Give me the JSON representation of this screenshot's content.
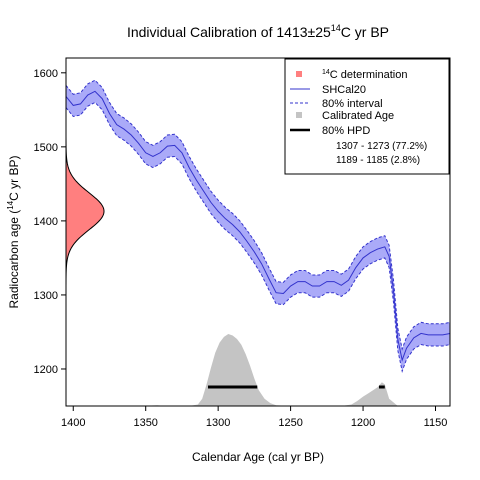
{
  "chart_data": {
    "type": "line",
    "title_main": "Individual Calibration of 1413±25",
    "title_sup": "14",
    "title_tail": "C yr BP",
    "xlabel": "Calendar Age (cal yr BP)",
    "ylabel_pre": "Radiocarbon age (",
    "ylabel_sup": "14",
    "ylabel_post": "C yr BP)",
    "xlim": [
      1405,
      1140
    ],
    "ylim": [
      1150,
      1620
    ],
    "x_ticks": [
      1400,
      1350,
      1300,
      1250,
      1200,
      1150
    ],
    "y_ticks": [
      1200,
      1300,
      1400,
      1500,
      1600
    ],
    "determination": {
      "mean": 1413,
      "sd": 25
    },
    "curve_name": "SHCal20",
    "curve": {
      "x": [
        1405,
        1400,
        1395,
        1390,
        1385,
        1380,
        1375,
        1370,
        1365,
        1360,
        1355,
        1350,
        1345,
        1340,
        1335,
        1330,
        1325,
        1320,
        1315,
        1310,
        1305,
        1300,
        1295,
        1290,
        1285,
        1280,
        1275,
        1270,
        1265,
        1260,
        1255,
        1250,
        1245,
        1240,
        1235,
        1230,
        1225,
        1220,
        1215,
        1210,
        1205,
        1200,
        1195,
        1190,
        1185,
        1182,
        1179,
        1176,
        1173,
        1170,
        1165,
        1160,
        1155,
        1150,
        1145,
        1140
      ],
      "mean": [
        1568,
        1556,
        1558,
        1570,
        1575,
        1565,
        1545,
        1530,
        1524,
        1516,
        1505,
        1492,
        1487,
        1492,
        1501,
        1502,
        1492,
        1472,
        1455,
        1440,
        1425,
        1413,
        1403,
        1395,
        1385,
        1372,
        1358,
        1342,
        1322,
        1303,
        1302,
        1312,
        1318,
        1318,
        1312,
        1312,
        1318,
        1318,
        1313,
        1320,
        1337,
        1350,
        1357,
        1362,
        1365,
        1352,
        1305,
        1240,
        1212,
        1228,
        1242,
        1248,
        1246,
        1246,
        1246,
        1248
      ],
      "half_width": [
        15,
        15,
        15,
        15,
        15,
        15,
        15,
        15,
        15,
        15,
        15,
        15,
        15,
        15,
        15,
        15,
        15,
        15,
        15,
        15,
        15,
        15,
        15,
        15,
        15,
        15,
        15,
        15,
        15,
        15,
        15,
        15,
        15,
        15,
        15,
        15,
        15,
        15,
        15,
        15,
        15,
        15,
        15,
        15,
        15,
        15,
        15,
        15,
        15,
        15,
        15,
        15,
        15,
        15,
        15,
        15
      ]
    },
    "band_label": "80% interval",
    "calibrated": {
      "x": [
        1355,
        1348,
        1342,
        1336,
        1320,
        1314,
        1311,
        1308,
        1305,
        1302,
        1299,
        1296,
        1293,
        1290,
        1287,
        1284,
        1281,
        1278,
        1275,
        1272,
        1268,
        1264,
        1260,
        1250,
        1215,
        1208,
        1204,
        1200,
        1196,
        1193,
        1190,
        1187,
        1185,
        1182,
        1176,
        1160
      ],
      "density": [
        0,
        0.006,
        0.01,
        0,
        0,
        0.02,
        0.1,
        0.3,
        0.53,
        0.74,
        0.88,
        0.96,
        1.0,
        0.98,
        0.93,
        0.85,
        0.72,
        0.56,
        0.38,
        0.22,
        0.1,
        0.04,
        0.01,
        0,
        0,
        0.02,
        0.07,
        0.13,
        0.18,
        0.22,
        0.26,
        0.33,
        0.3,
        0.1,
        0,
        0
      ]
    },
    "calibrated_label": "Calibrated Age",
    "hpd_label": "80% HPD",
    "hpd_ranges": [
      {
        "from": 1307,
        "to": 1273,
        "label": "1307 - 1273 (77.2%)"
      },
      {
        "from": 1189,
        "to": 1185,
        "label": "1189 - 1185 (2.8%)"
      }
    ],
    "legend_position": "top-right",
    "legend": {
      "determination_pre": "",
      "determination_sup": "14",
      "determination_post": "C determination"
    },
    "colors": {
      "determination_fill": "#ff7f7f",
      "curve": "#3333cc",
      "band": "#aaaaf8",
      "calibrated": "#c4c4c4",
      "hpd": "#000000"
    },
    "grid": false
  }
}
